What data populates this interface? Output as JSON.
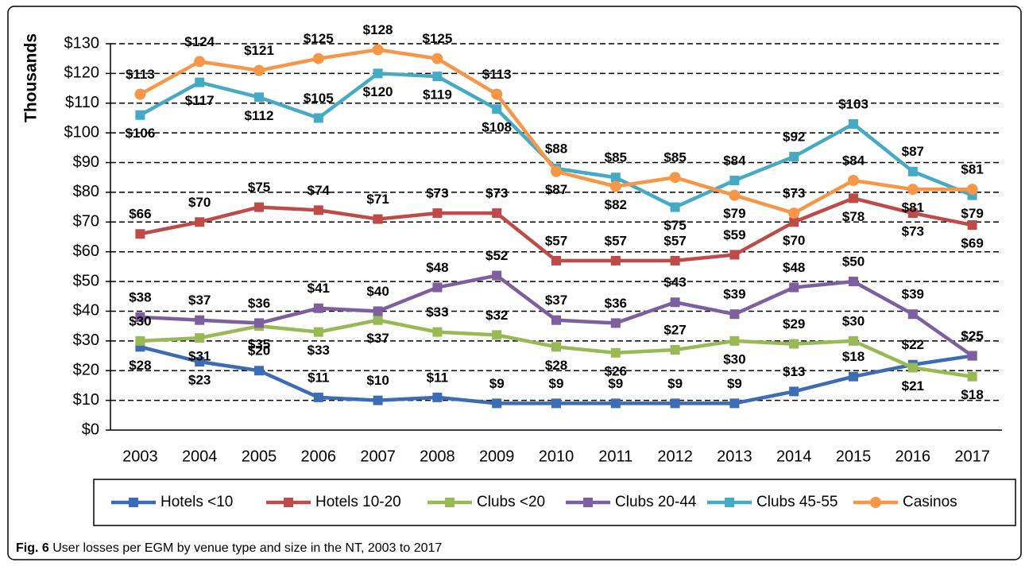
{
  "chart_data": {
    "type": "line",
    "ylabel": "Thousands",
    "categories": [
      "2003",
      "2004",
      "2005",
      "2006",
      "2007",
      "2008",
      "2009",
      "2010",
      "2011",
      "2012",
      "2013",
      "2014",
      "2015",
      "2016",
      "2017"
    ],
    "ylim": [
      0,
      130
    ],
    "yticks": [
      {
        "value": 0,
        "label": "$0"
      },
      {
        "value": 10,
        "label": "$10"
      },
      {
        "value": 20,
        "label": "$20"
      },
      {
        "value": 30,
        "label": "$30"
      },
      {
        "value": 40,
        "label": "$40"
      },
      {
        "value": 50,
        "label": "$50"
      },
      {
        "value": 60,
        "label": "$60"
      },
      {
        "value": 70,
        "label": "$70"
      },
      {
        "value": 80,
        "label": "$80"
      },
      {
        "value": 90,
        "label": "$90"
      },
      {
        "value": 100,
        "label": "$100"
      },
      {
        "value": 110,
        "label": "$110"
      },
      {
        "value": 120,
        "label": "$120"
      },
      {
        "value": 130,
        "label": "$130"
      }
    ],
    "grid": true,
    "legend": "bottom",
    "series": [
      {
        "name": "Hotels <10",
        "color": "#3c6db4",
        "marker": "square",
        "values": [
          28,
          23,
          20,
          11,
          10,
          11,
          9,
          9,
          9,
          9,
          9,
          13,
          18,
          22,
          25
        ],
        "value_labels": [
          "$28",
          "$23",
          "$20",
          "$11",
          "$10",
          "$11",
          "$9",
          "$9",
          "$9",
          "$9",
          "$9",
          "$13",
          "$18",
          "$22",
          "$25"
        ]
      },
      {
        "name": "Hotels 10-20",
        "color": "#be4b48",
        "marker": "square",
        "values": [
          66,
          70,
          75,
          74,
          71,
          73,
          73,
          57,
          57,
          57,
          59,
          70,
          78,
          73,
          69
        ],
        "value_labels": [
          "$66",
          "$70",
          "$75",
          "$74",
          "$71",
          "$73",
          "$73",
          "$57",
          "$57",
          "$57",
          "$59",
          "$70",
          "$78",
          "$73",
          "$69"
        ]
      },
      {
        "name": "Clubs <20",
        "color": "#98b954",
        "marker": "square",
        "values": [
          30,
          31,
          35,
          33,
          37,
          33,
          32,
          28,
          26,
          27,
          30,
          29,
          30,
          21,
          18
        ],
        "value_labels": [
          "$30",
          "$31",
          "$35",
          "$33",
          "$37",
          "$33",
          "$32",
          "$28",
          "$26",
          "$27",
          "$30",
          "$29",
          "$30",
          "$21",
          "$18"
        ]
      },
      {
        "name": "Clubs 20-44",
        "color": "#7d5fa0",
        "marker": "square",
        "values": [
          38,
          37,
          36,
          41,
          40,
          48,
          52,
          37,
          36,
          43,
          39,
          48,
          50,
          39,
          25
        ],
        "value_labels": [
          "$38",
          "$37",
          "$36",
          "$41",
          "$40",
          "$48",
          "$52",
          "$37",
          "$36",
          "$43",
          "$39",
          "$48",
          "$50",
          "$39",
          "$25"
        ]
      },
      {
        "name": "Clubs 45-55",
        "color": "#46aac5",
        "marker": "square",
        "values": [
          106,
          117,
          112,
          105,
          120,
          119,
          108,
          88,
          85,
          75,
          84,
          92,
          103,
          87,
          79
        ],
        "value_labels": [
          "$106",
          "$117",
          "$112",
          "$105",
          "$120",
          "$119",
          "$108",
          "$88",
          "$85",
          "$75",
          "$84",
          "$92",
          "$103",
          "$87",
          "$79"
        ]
      },
      {
        "name": "Casinos",
        "color": "#f79646",
        "marker": "circle",
        "values": [
          113,
          124,
          121,
          125,
          128,
          125,
          113,
          87,
          82,
          85,
          79,
          73,
          84,
          81,
          81
        ],
        "value_labels": [
          "$113",
          "$124",
          "$121",
          "$125",
          "$128",
          "$125",
          "$113",
          "$87",
          "$82",
          "$85",
          "$79",
          "$73",
          "$84",
          "$81",
          "$81"
        ]
      }
    ]
  },
  "caption": {
    "label": "Fig. 6",
    "text": "User losses per EGM by venue type and size in the NT, 2003 to 2017"
  }
}
